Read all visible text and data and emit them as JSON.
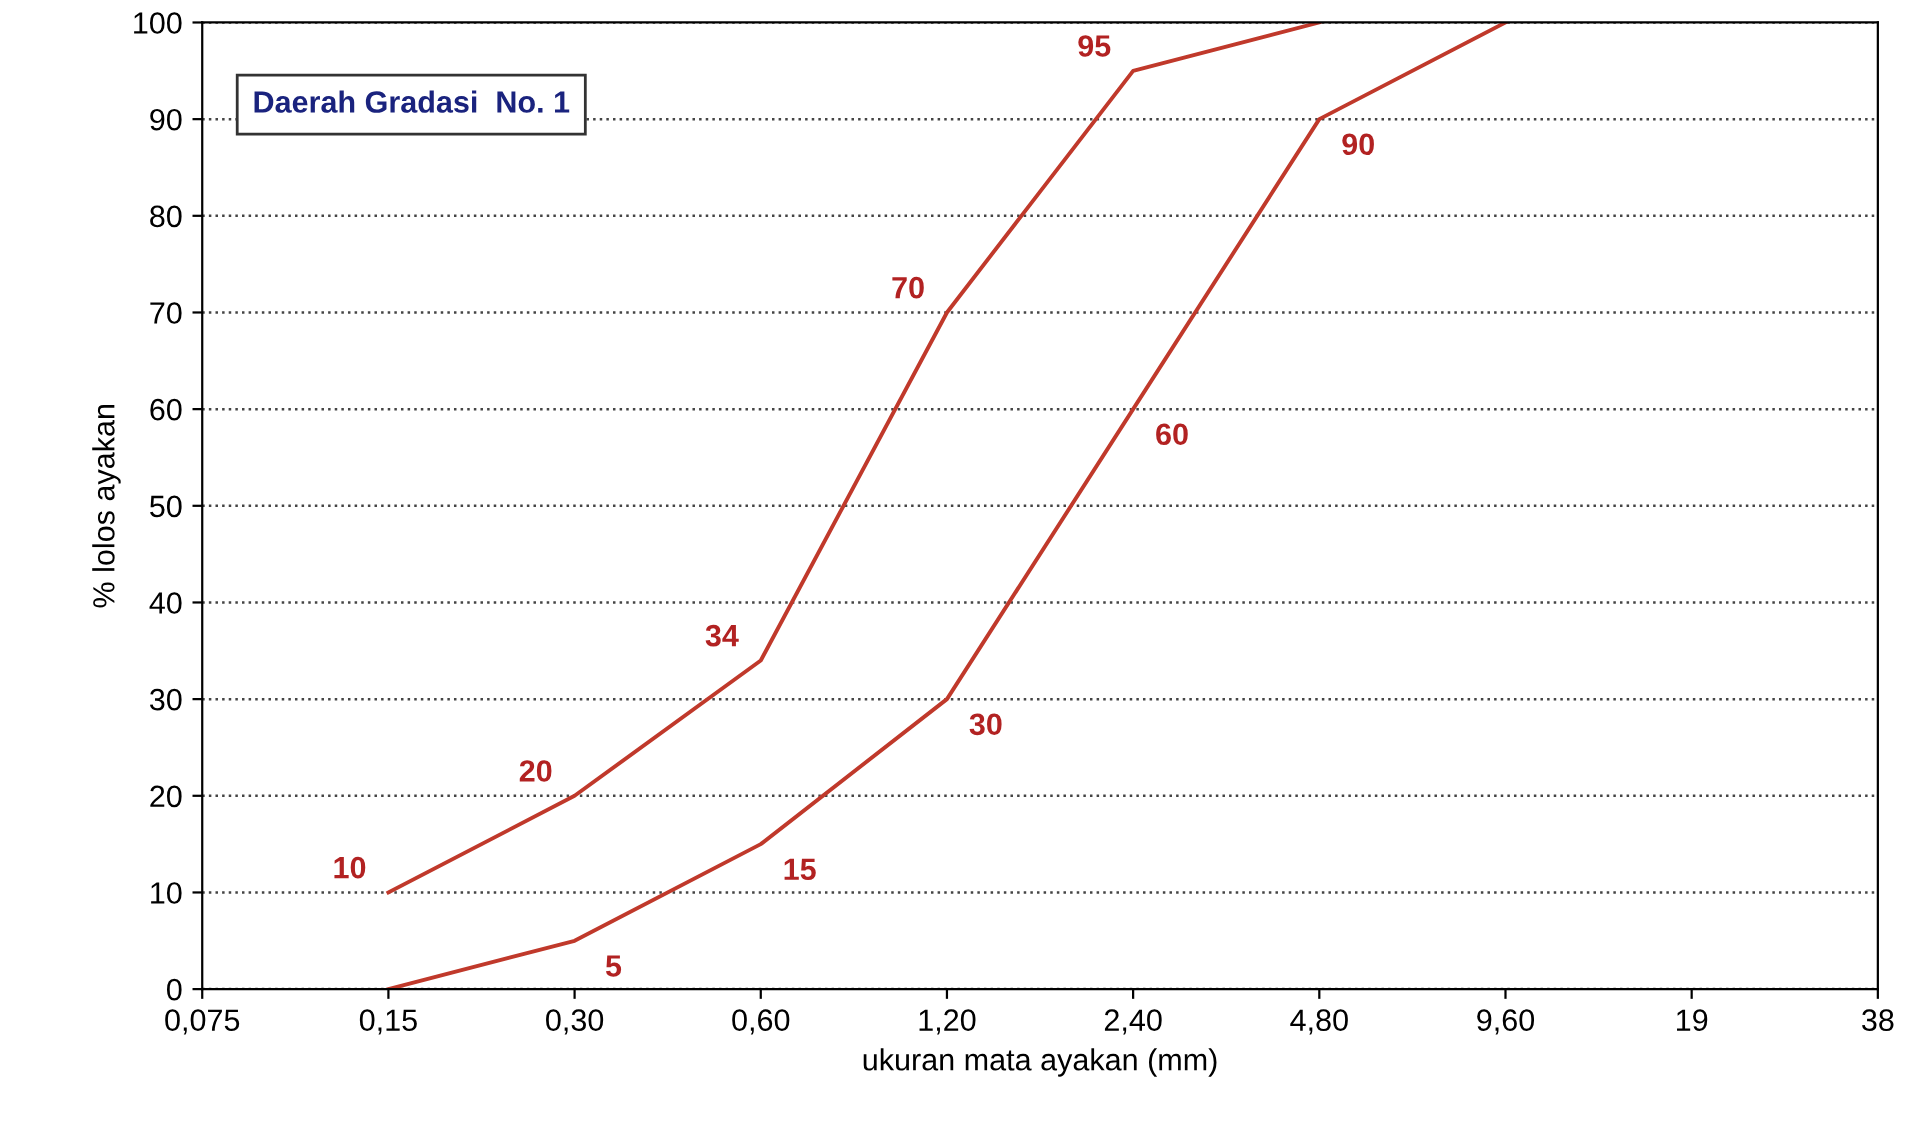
{
  "chart_data": {
    "type": "line",
    "xlabel": "ukuran mata ayakan (mm)",
    "ylabel": "% lolos ayakan",
    "categories": [
      "0,075",
      "0,15",
      "0,30",
      "0,60",
      "1,20",
      "2,40",
      "4,80",
      "9,60",
      "19",
      "38"
    ],
    "series": [
      {
        "color": "#c0392b",
        "values": [
          null,
          10,
          20,
          34,
          70,
          95,
          100,
          null,
          null,
          null
        ],
        "value_labels": [
          null,
          "10",
          "20",
          "34",
          "70",
          "95",
          null,
          null,
          null,
          null
        ]
      },
      {
        "color": "#c0392b",
        "values": [
          null,
          0,
          5,
          15,
          30,
          60,
          90,
          100,
          null,
          null
        ],
        "value_labels": [
          null,
          null,
          "5",
          "15",
          "30",
          "60",
          "90",
          null,
          null,
          null
        ]
      }
    ],
    "ylim": [
      0,
      100
    ],
    "yticks": [
      0,
      10,
      20,
      30,
      40,
      50,
      60,
      70,
      80,
      90,
      100
    ],
    "grid": "y",
    "legend": false,
    "marker": "none",
    "line_style": "solid",
    "annotations": [
      "Daerah Gradasi  No. 1"
    ]
  }
}
